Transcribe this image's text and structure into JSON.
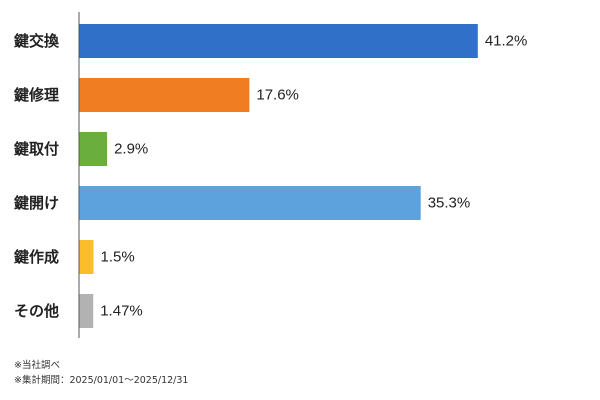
{
  "chart_data": {
    "type": "bar",
    "orientation": "horizontal",
    "categories": [
      "鍵交換",
      "鍵修理",
      "鍵取付",
      "鍵開け",
      "鍵作成",
      "その他"
    ],
    "values": [
      41.2,
      17.6,
      2.9,
      35.3,
      1.5,
      1.47
    ],
    "value_labels": [
      "41.2%",
      "17.6%",
      "2.9%",
      "35.3%",
      "1.5%",
      "1.47%"
    ],
    "colors": [
      "#3070C8",
      "#F07D22",
      "#6AAF3D",
      "#5DA2DC",
      "#FBBE2A",
      "#B2B2B2"
    ],
    "xlim": [
      0,
      50
    ],
    "grid": false,
    "legend": "none"
  },
  "notes": [
    "※当社調べ",
    "※集計期間：2025/01/01～2025/12/31"
  ]
}
